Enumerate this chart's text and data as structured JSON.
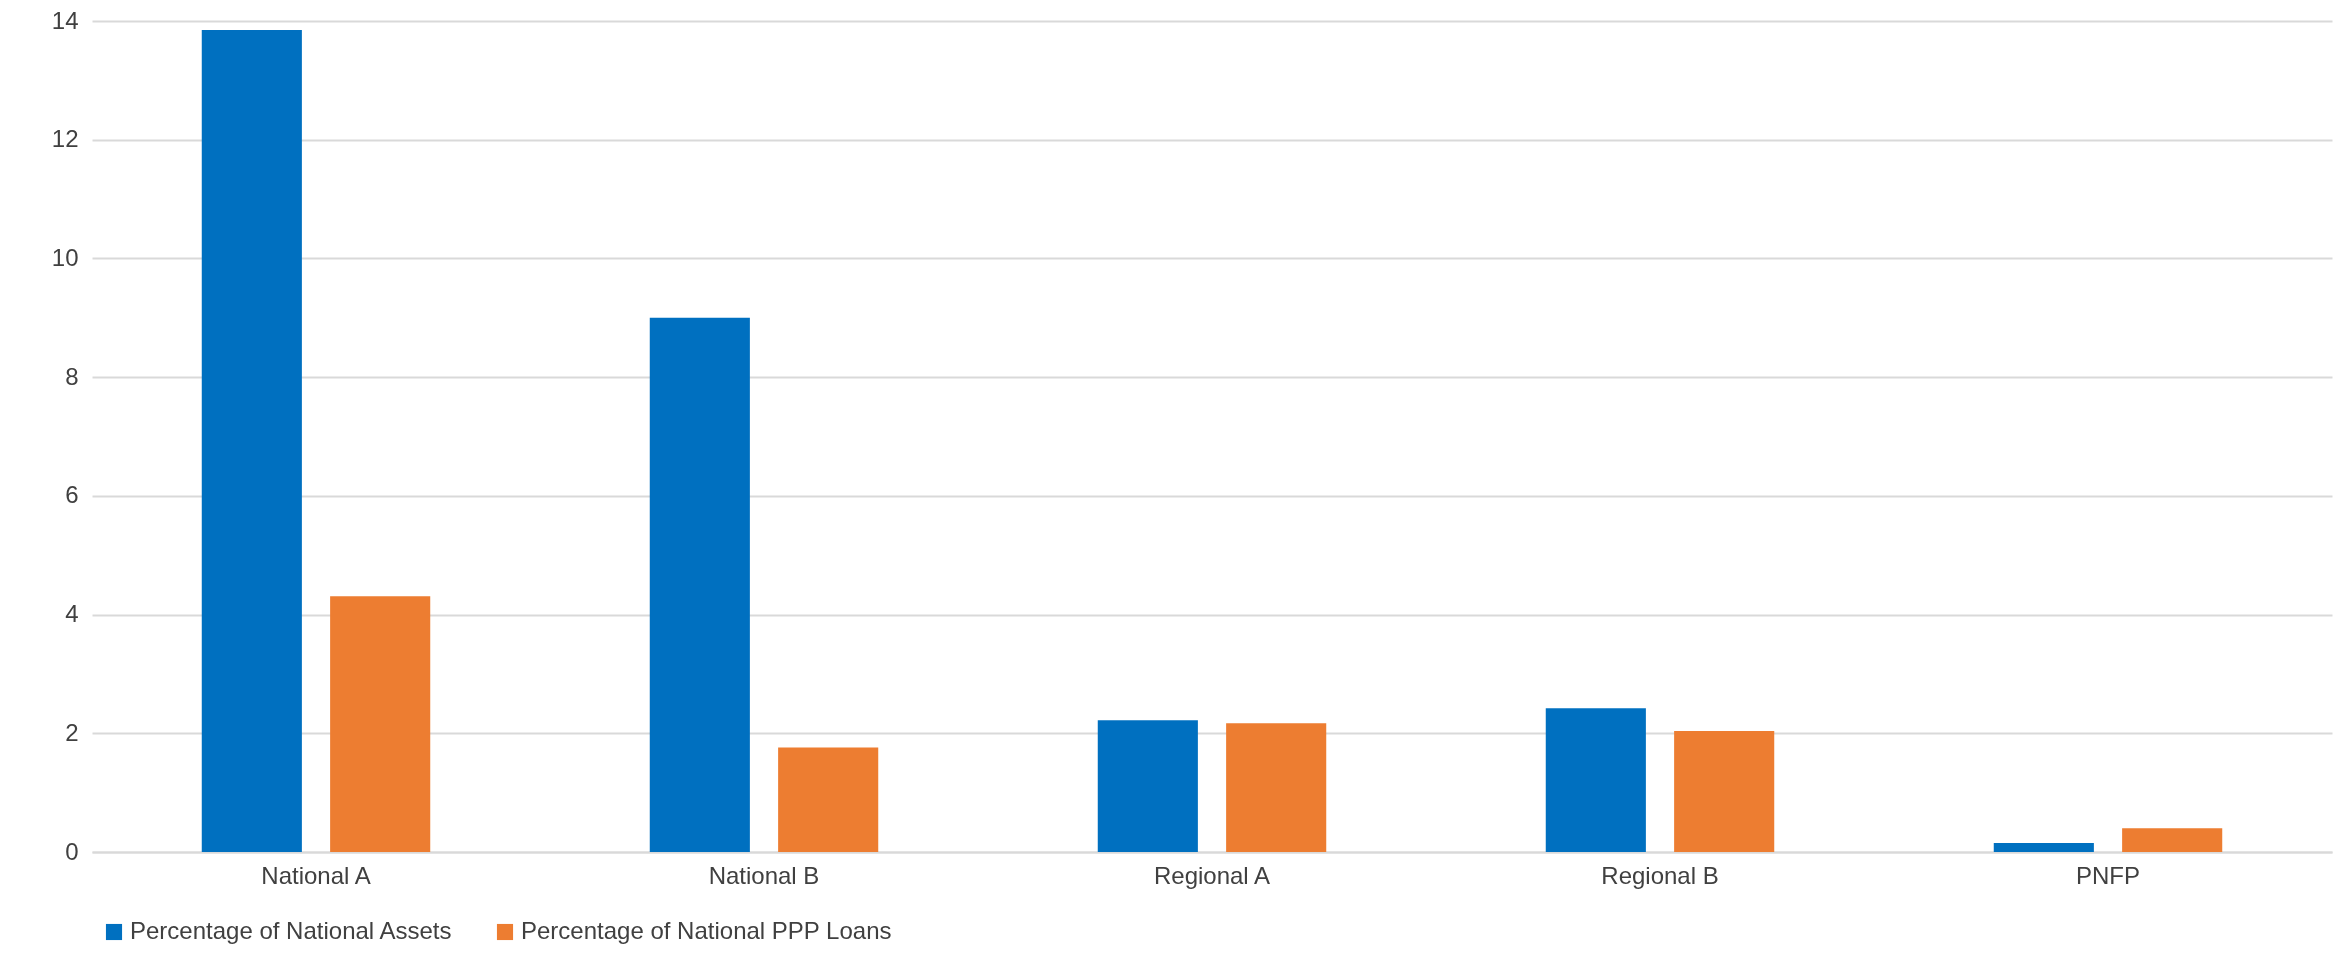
{
  "chart_data": {
    "type": "bar",
    "categories": [
      "National A",
      "National B",
      "Regional A",
      "Regional B",
      "PNFP"
    ],
    "series": [
      {
        "name": "Percentage of National Assets",
        "color": "#0070c0",
        "values": [
          13.85,
          9.0,
          2.22,
          2.42,
          0.15
        ]
      },
      {
        "name": "Percentage of National PPP Loans",
        "color": "#ed7d31",
        "values": [
          4.31,
          1.76,
          2.17,
          2.04,
          0.4
        ]
      }
    ],
    "ylim": [
      0,
      14
    ],
    "yticks": [
      0,
      2,
      4,
      6,
      8,
      10,
      12,
      14
    ],
    "grid": "y",
    "legend": "bottom"
  }
}
